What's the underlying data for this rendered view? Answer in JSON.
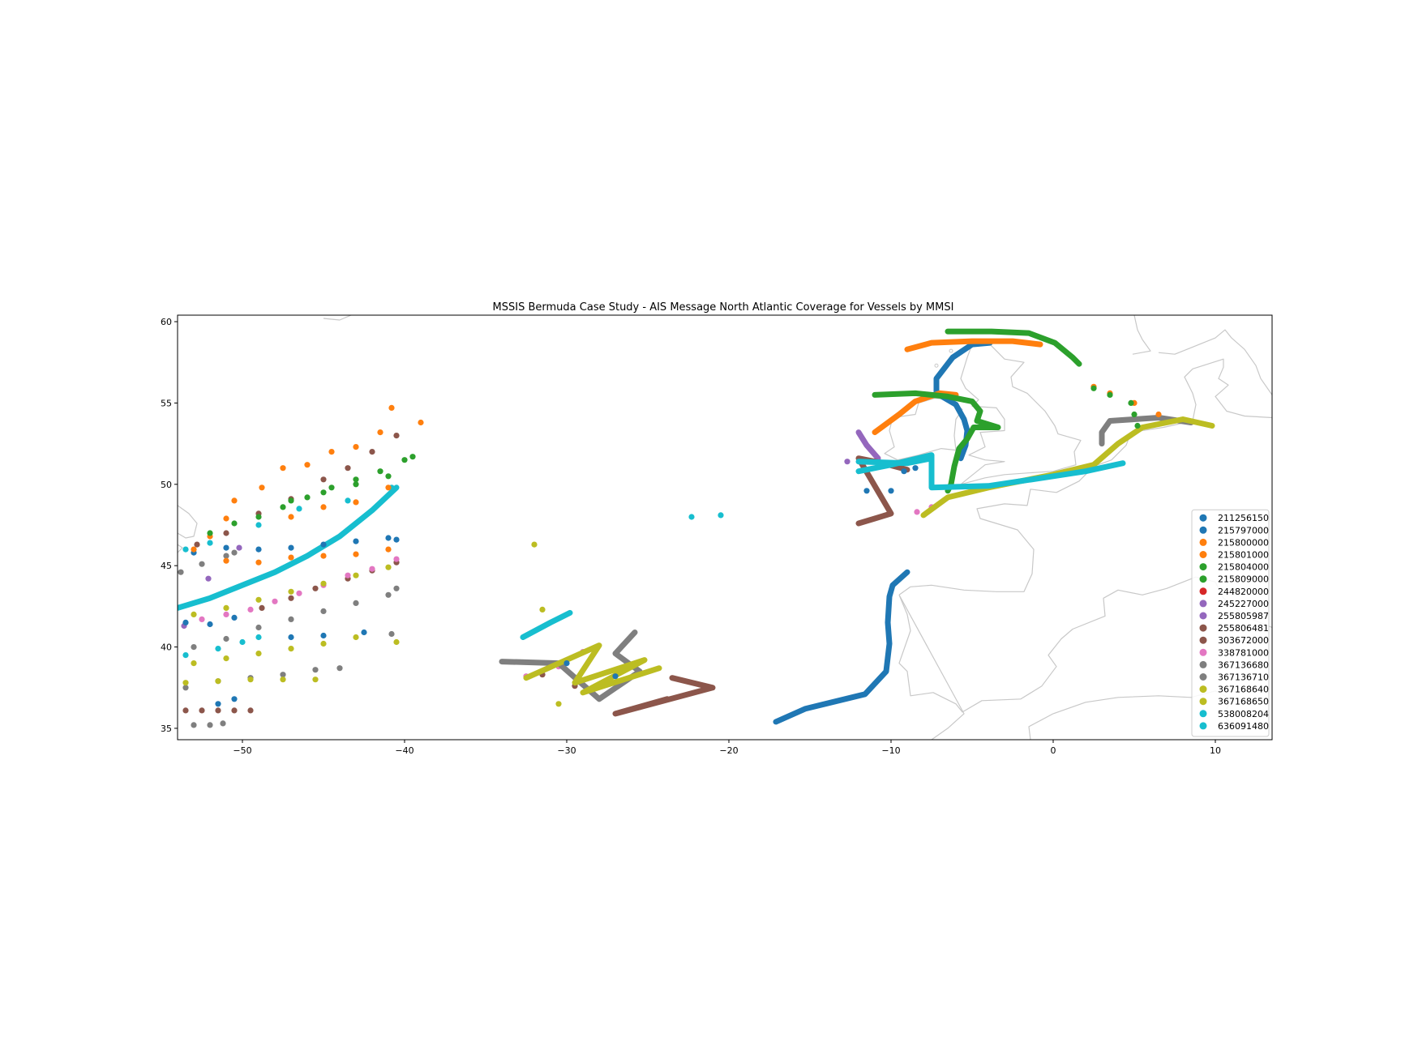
{
  "chart_data": {
    "type": "scatter",
    "title": "MSSIS Bermuda Case Study - AIS Message North Atlantic Coverage for Vessels by MMSI",
    "xlabel": "",
    "ylabel": "",
    "xlim": [
      -54,
      13.5
    ],
    "ylim": [
      34.3,
      60.4
    ],
    "x_ticks": [
      -50,
      -40,
      -30,
      -20,
      -10,
      0,
      10
    ],
    "y_ticks": [
      35,
      40,
      45,
      50,
      55,
      60
    ],
    "grid": false,
    "legend_position": "bottom-right",
    "basemap": "coastlines",
    "coastline_color": "#c8c8c8",
    "series": [
      {
        "name": "211256150",
        "color": "#1f77b4",
        "style": "track",
        "points": [
          [
            -17.1,
            35.4
          ],
          [
            -15.3,
            36.2
          ],
          [
            -11.6,
            37.1
          ],
          [
            -10.3,
            38.5
          ],
          [
            -10.1,
            40.2
          ],
          [
            -10.2,
            41.5
          ],
          [
            -10.1,
            43.1
          ],
          [
            -9.9,
            43.8
          ],
          [
            -9.0,
            44.6
          ]
        ]
      },
      {
        "name": "215797000",
        "color": "#1f77b4",
        "style": "track",
        "points": [
          [
            -3.9,
            58.7
          ],
          [
            -5.0,
            58.6
          ],
          [
            -6.2,
            57.8
          ],
          [
            -7.2,
            56.5
          ],
          [
            -7.2,
            55.6
          ],
          [
            -6.0,
            54.9
          ],
          [
            -5.5,
            54.0
          ],
          [
            -5.3,
            53.3
          ],
          [
            -5.4,
            52.4
          ],
          [
            -5.7,
            51.6
          ]
        ]
      },
      {
        "name": "215800000",
        "color": "#ff7f0e",
        "style": "track",
        "points": [
          [
            -9.0,
            58.3
          ],
          [
            -7.5,
            58.7
          ],
          [
            -5.0,
            58.8
          ],
          [
            -2.5,
            58.8
          ],
          [
            -0.8,
            58.6
          ]
        ]
      },
      {
        "name": "215801000",
        "color": "#ff7f0e",
        "style": "track",
        "points": [
          [
            -11.0,
            53.2
          ],
          [
            -9.5,
            54.3
          ],
          [
            -8.5,
            55.1
          ],
          [
            -7.0,
            55.6
          ],
          [
            -6.0,
            55.5
          ]
        ]
      },
      {
        "name": "215804000",
        "color": "#2ca02c",
        "style": "track",
        "points": [
          [
            -6.5,
            59.4
          ],
          [
            -3.8,
            59.4
          ],
          [
            -1.5,
            59.3
          ],
          [
            0.1,
            58.7
          ],
          [
            1.2,
            57.8
          ],
          [
            1.6,
            57.4
          ]
        ]
      },
      {
        "name": "215809000",
        "color": "#2ca02c",
        "style": "track",
        "points": [
          [
            -11.0,
            55.5
          ],
          [
            -8.5,
            55.6
          ],
          [
            -6.5,
            55.4
          ],
          [
            -5.0,
            55.1
          ],
          [
            -4.5,
            54.5
          ],
          [
            -4.7,
            53.9
          ],
          [
            -3.4,
            53.5
          ],
          [
            -4.9,
            53.5
          ],
          [
            -5.3,
            52.8
          ],
          [
            -5.8,
            52.2
          ],
          [
            -6.1,
            51.1
          ],
          [
            -6.3,
            50.0
          ],
          [
            -6.5,
            49.6
          ]
        ]
      },
      {
        "name": "244820000",
        "color": "#d62728",
        "style": "track",
        "points": []
      },
      {
        "name": "245227000",
        "color": "#9467bd",
        "style": "track",
        "points": [
          [
            -12.0,
            53.2
          ],
          [
            -11.5,
            52.4
          ],
          [
            -10.8,
            51.6
          ]
        ]
      },
      {
        "name": "255805987",
        "color": "#9467bd",
        "style": "dots",
        "points": [
          [
            -12.7,
            51.4
          ],
          [
            -52.1,
            44.2
          ],
          [
            -50.2,
            46.1
          ],
          [
            -53.6,
            41.3
          ]
        ]
      },
      {
        "name": "255806481",
        "color": "#8c564b",
        "style": "track",
        "points": [
          [
            -12.0,
            47.6
          ],
          [
            -11.0,
            47.9
          ],
          [
            -10.0,
            48.2
          ],
          [
            -12.0,
            51.6
          ],
          [
            -10.5,
            51.3
          ],
          [
            -9.0,
            50.9
          ],
          [
            -23.5,
            38.1
          ],
          [
            -21.0,
            37.5
          ],
          [
            -27.0,
            35.9
          ],
          [
            -23.8,
            36.8
          ]
        ]
      },
      {
        "name": "303672000",
        "color": "#8c564b",
        "style": "dots",
        "points": [
          [
            -53.5,
            36.1
          ],
          [
            -52.5,
            36.1
          ],
          [
            -51.5,
            36.1
          ],
          [
            -50.5,
            36.1
          ],
          [
            -49.5,
            36.1
          ],
          [
            -52.8,
            46.3
          ],
          [
            -51.0,
            47.0
          ],
          [
            -49.0,
            48.2
          ],
          [
            -47.0,
            49.1
          ],
          [
            -45.0,
            50.3
          ],
          [
            -43.5,
            51.0
          ],
          [
            -42.0,
            52.0
          ],
          [
            -40.5,
            53.0
          ],
          [
            -48.8,
            42.4
          ],
          [
            -47.0,
            43.0
          ],
          [
            -45.5,
            43.6
          ],
          [
            -43.5,
            44.2
          ],
          [
            -42.0,
            44.7
          ],
          [
            -40.5,
            45.2
          ],
          [
            -31.5,
            38.3
          ],
          [
            -29.5,
            37.6
          ],
          [
            -25.5,
            36.3
          ]
        ]
      },
      {
        "name": "338781000",
        "color": "#e377c2",
        "style": "dots",
        "points": [
          [
            -52.5,
            41.7
          ],
          [
            -51.0,
            42.0
          ],
          [
            -49.5,
            42.3
          ],
          [
            -48.0,
            42.8
          ],
          [
            -46.5,
            43.3
          ],
          [
            -45.0,
            43.8
          ],
          [
            -43.5,
            44.4
          ],
          [
            -42.0,
            44.8
          ],
          [
            -40.5,
            45.4
          ],
          [
            -8.4,
            48.3
          ],
          [
            -7.5,
            48.6
          ],
          [
            -32.5,
            38.2
          ],
          [
            -30.5,
            38.8
          ],
          [
            -29.0,
            39.7
          ]
        ]
      },
      {
        "name": "367136680",
        "color": "#7f7f7f",
        "style": "dots",
        "points": [
          [
            -53.5,
            37.5
          ],
          [
            -51.5,
            37.9
          ],
          [
            -49.5,
            38.1
          ],
          [
            -47.5,
            38.3
          ],
          [
            -45.5,
            38.6
          ],
          [
            -44.0,
            38.7
          ],
          [
            -53.8,
            44.6
          ],
          [
            -52.5,
            45.1
          ],
          [
            -51.0,
            45.6
          ],
          [
            -50.5,
            45.8
          ],
          [
            -53.0,
            35.2
          ],
          [
            -52.0,
            35.2
          ],
          [
            -51.2,
            35.3
          ],
          [
            -53.0,
            40.0
          ],
          [
            -51.0,
            40.5
          ],
          [
            -49.0,
            41.2
          ],
          [
            -47.0,
            41.7
          ],
          [
            -45.0,
            42.2
          ],
          [
            -43.0,
            42.7
          ],
          [
            -41.0,
            43.2
          ],
          [
            -40.5,
            43.6
          ],
          [
            -40.8,
            40.8
          ]
        ]
      },
      {
        "name": "367136710",
        "color": "#7f7f7f",
        "style": "track",
        "points": [
          [
            -34.0,
            39.1
          ],
          [
            -30.5,
            39.0
          ],
          [
            -28.0,
            36.8
          ],
          [
            -25.5,
            38.5
          ],
          [
            -27.0,
            39.6
          ],
          [
            -25.8,
            40.9
          ],
          [
            3.0,
            52.5
          ],
          [
            3.0,
            53.2
          ],
          [
            3.5,
            53.9
          ],
          [
            6.5,
            54.1
          ],
          [
            8.5,
            53.8
          ]
        ]
      },
      {
        "name": "367168640",
        "color": "#bcbd22",
        "style": "dots",
        "points": [
          [
            -53.5,
            37.8
          ],
          [
            -51.5,
            37.9
          ],
          [
            -49.5,
            38.0
          ],
          [
            -47.5,
            38.0
          ],
          [
            -45.5,
            38.0
          ],
          [
            -53.0,
            42.0
          ],
          [
            -51.0,
            42.4
          ],
          [
            -49.0,
            42.9
          ],
          [
            -47.0,
            43.4
          ],
          [
            -45.0,
            43.9
          ],
          [
            -43.0,
            44.4
          ],
          [
            -41.0,
            44.9
          ],
          [
            -53.0,
            39.0
          ],
          [
            -51.0,
            39.3
          ],
          [
            -49.0,
            39.6
          ],
          [
            -47.0,
            39.9
          ],
          [
            -45.0,
            40.2
          ],
          [
            -43.0,
            40.6
          ],
          [
            -40.5,
            40.3
          ],
          [
            -32.0,
            46.3
          ],
          [
            -31.5,
            42.3
          ],
          [
            -30.5,
            36.5
          ]
        ]
      },
      {
        "name": "367168650",
        "color": "#bcbd22",
        "style": "track",
        "points": [
          [
            -32.5,
            38.1
          ],
          [
            -28.0,
            40.1
          ],
          [
            -29.5,
            37.8
          ],
          [
            -25.2,
            39.2
          ],
          [
            -29.0,
            37.2
          ],
          [
            -24.3,
            38.7
          ],
          [
            -8.0,
            48.1
          ],
          [
            -6.5,
            49.2
          ],
          [
            -4.0,
            49.8
          ],
          [
            0.0,
            50.6
          ],
          [
            2.5,
            51.2
          ],
          [
            4.0,
            52.5
          ],
          [
            5.5,
            53.5
          ],
          [
            8.0,
            54.0
          ],
          [
            9.8,
            53.6
          ]
        ]
      },
      {
        "name": "538008204",
        "color": "#17becf",
        "style": "track",
        "points": [
          [
            -54.0,
            42.4
          ],
          [
            -52.0,
            43.0
          ],
          [
            -50.0,
            43.8
          ],
          [
            -48.0,
            44.6
          ],
          [
            -46.0,
            45.6
          ],
          [
            -44.0,
            46.8
          ],
          [
            -42.0,
            48.4
          ],
          [
            -40.5,
            49.8
          ],
          [
            -32.7,
            40.6
          ],
          [
            -31.0,
            41.5
          ],
          [
            -29.8,
            42.1
          ]
        ]
      },
      {
        "name": "636091480",
        "color": "#17becf",
        "style": "track",
        "points": [
          [
            -12.0,
            50.8
          ],
          [
            -10.0,
            51.2
          ],
          [
            -7.5,
            51.8
          ],
          [
            -7.5,
            49.8
          ],
          [
            -4.0,
            49.9
          ],
          [
            0.0,
            50.5
          ],
          [
            2.0,
            50.8
          ],
          [
            4.3,
            51.3
          ],
          [
            -12.0,
            51.4
          ],
          [
            -9.0,
            51.3
          ],
          [
            -7.5,
            51.6
          ]
        ]
      }
    ],
    "extra_points": [
      {
        "series": "538008204",
        "points": [
          [
            -22.3,
            48.0
          ],
          [
            -20.5,
            48.1
          ],
          [
            -53.5,
            39.5
          ],
          [
            -51.5,
            39.9
          ],
          [
            -50.0,
            40.3
          ],
          [
            -49.0,
            40.6
          ],
          [
            -53.5,
            46.0
          ],
          [
            -52.0,
            46.4
          ],
          [
            -49.0,
            47.5
          ],
          [
            -46.5,
            48.5
          ],
          [
            -43.5,
            49.0
          ],
          [
            -40.8,
            49.8
          ]
        ]
      },
      {
        "series": "211256150",
        "points": [
          [
            -53.5,
            41.5
          ],
          [
            -52.0,
            41.4
          ],
          [
            -50.5,
            41.8
          ],
          [
            -47.0,
            40.6
          ],
          [
            -45.0,
            40.7
          ],
          [
            -42.5,
            40.9
          ],
          [
            -53.0,
            45.8
          ],
          [
            -51.0,
            46.1
          ],
          [
            -49.0,
            46.0
          ],
          [
            -47.0,
            46.1
          ],
          [
            -45.0,
            46.3
          ],
          [
            -43.0,
            46.5
          ],
          [
            -41.0,
            46.7
          ],
          [
            -40.5,
            46.6
          ],
          [
            -50.5,
            36.8
          ],
          [
            -51.5,
            36.5
          ],
          [
            -30.0,
            39.0
          ],
          [
            -27.0,
            38.2
          ],
          [
            -10.0,
            49.6
          ],
          [
            -11.5,
            49.6
          ],
          [
            -9.2,
            50.8
          ],
          [
            -8.5,
            51.0
          ]
        ]
      },
      {
        "series": "215800000",
        "points": [
          [
            -53.0,
            46.0
          ],
          [
            -52.0,
            46.8
          ],
          [
            -51.0,
            47.9
          ],
          [
            -50.5,
            49.0
          ],
          [
            -48.8,
            49.8
          ],
          [
            -47.5,
            51.0
          ],
          [
            -46.0,
            51.2
          ],
          [
            -44.5,
            52.0
          ],
          [
            -43.0,
            52.3
          ],
          [
            -41.5,
            53.2
          ],
          [
            -40.8,
            54.7
          ],
          [
            -39.0,
            53.8
          ],
          [
            -47.0,
            48.0
          ],
          [
            -45.0,
            48.6
          ],
          [
            -43.0,
            48.9
          ],
          [
            -41.0,
            49.8
          ],
          [
            -51.0,
            45.3
          ],
          [
            -49.0,
            45.2
          ],
          [
            -47.0,
            45.5
          ],
          [
            -45.0,
            45.6
          ],
          [
            -43.0,
            45.7
          ],
          [
            -41.0,
            46.0
          ],
          [
            2.5,
            56.0
          ],
          [
            3.5,
            55.6
          ],
          [
            5.0,
            55.0
          ],
          [
            6.5,
            54.3
          ]
        ]
      },
      {
        "series": "215809000",
        "points": [
          [
            -52.0,
            47.0
          ],
          [
            -50.5,
            47.6
          ],
          [
            -49.0,
            48.0
          ],
          [
            -47.5,
            48.6
          ],
          [
            -46.0,
            49.2
          ],
          [
            -44.5,
            49.8
          ],
          [
            -43.0,
            50.3
          ],
          [
            -41.5,
            50.8
          ],
          [
            -40.0,
            51.5
          ],
          [
            -47.0,
            49.0
          ],
          [
            -45.0,
            49.5
          ],
          [
            -43.0,
            50.0
          ],
          [
            -41.0,
            50.5
          ],
          [
            -39.5,
            51.7
          ],
          [
            2.5,
            55.9
          ],
          [
            3.5,
            55.5
          ],
          [
            4.8,
            55.0
          ],
          [
            5.0,
            54.3
          ],
          [
            5.2,
            53.6
          ]
        ]
      }
    ]
  }
}
